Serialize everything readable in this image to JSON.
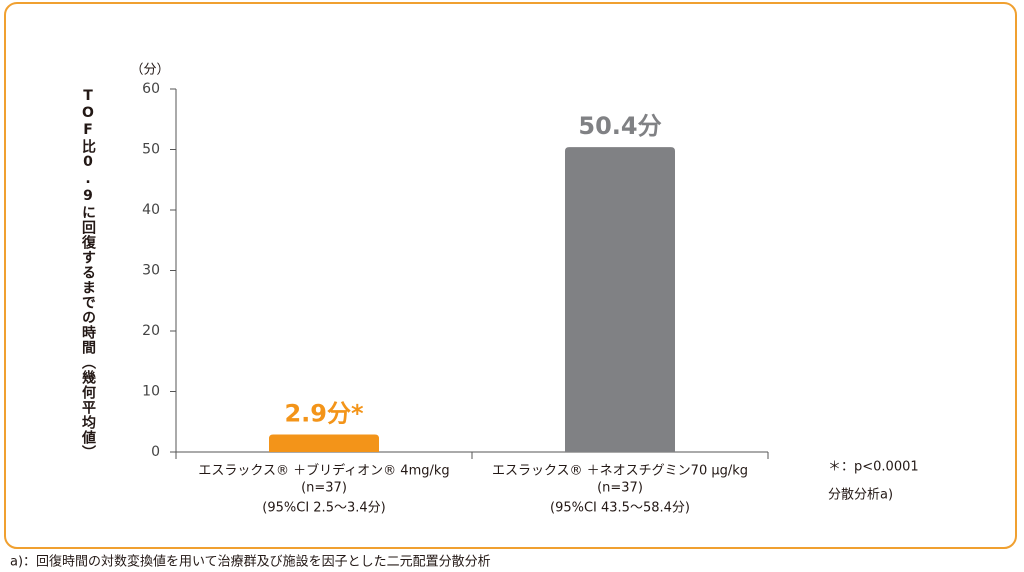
{
  "chart_data": {
    "type": "bar",
    "y_label": "TOF比0.9に回復するまでの時間（幾何平均値）",
    "y_unit": "（分）",
    "categories": [
      "エスラックス® ＋ブリディオン® 4mg/kg",
      "エスラックス® ＋ネオスチグミン70 μg/kg"
    ],
    "n_labels": [
      "(n=37)",
      "(n=37)"
    ],
    "ci_labels": [
      "(95%CI 2.5〜3.4分)",
      "(95%CI 43.5〜58.4分)"
    ],
    "values": [
      2.9,
      50.4
    ],
    "value_labels": [
      "2.9分*",
      "50.4分"
    ],
    "colors": [
      "#f39419",
      "#808184"
    ],
    "ylim": [
      0,
      60
    ],
    "yticks": [
      0,
      10,
      20,
      30,
      40,
      50,
      60
    ],
    "notes": [
      "＊：p<0.0001",
      "分散分析a)"
    ],
    "footnote": "a)：回復時間の対数変換値を用いて治療群及び施設を因子とした二元配置分散分析"
  }
}
